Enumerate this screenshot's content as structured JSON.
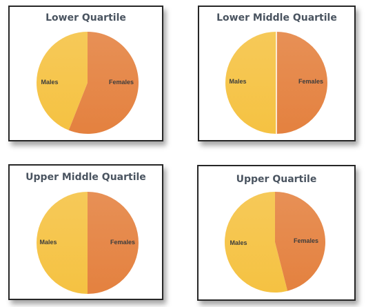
{
  "colors": {
    "males": "#f5c242",
    "females": "#e4813f",
    "label": "#3c3c3c"
  },
  "chart_data": [
    {
      "type": "pie",
      "title": "Lower Quartile",
      "legend": "none",
      "categories": [
        "Males",
        "Females"
      ],
      "values": [
        44,
        56
      ]
    },
    {
      "type": "pie",
      "title": "Lower Middle Quartile",
      "legend": "none",
      "categories": [
        "Males",
        "Females"
      ],
      "values": [
        50,
        50
      ]
    },
    {
      "type": "pie",
      "title": "Upper Middle Quartile",
      "legend": "none",
      "categories": [
        "Males",
        "Females"
      ],
      "values": [
        50,
        50
      ]
    },
    {
      "type": "pie",
      "title": "Upper Quartile",
      "legend": "none",
      "categories": [
        "Males",
        "Females"
      ],
      "values": [
        54,
        46
      ]
    }
  ]
}
